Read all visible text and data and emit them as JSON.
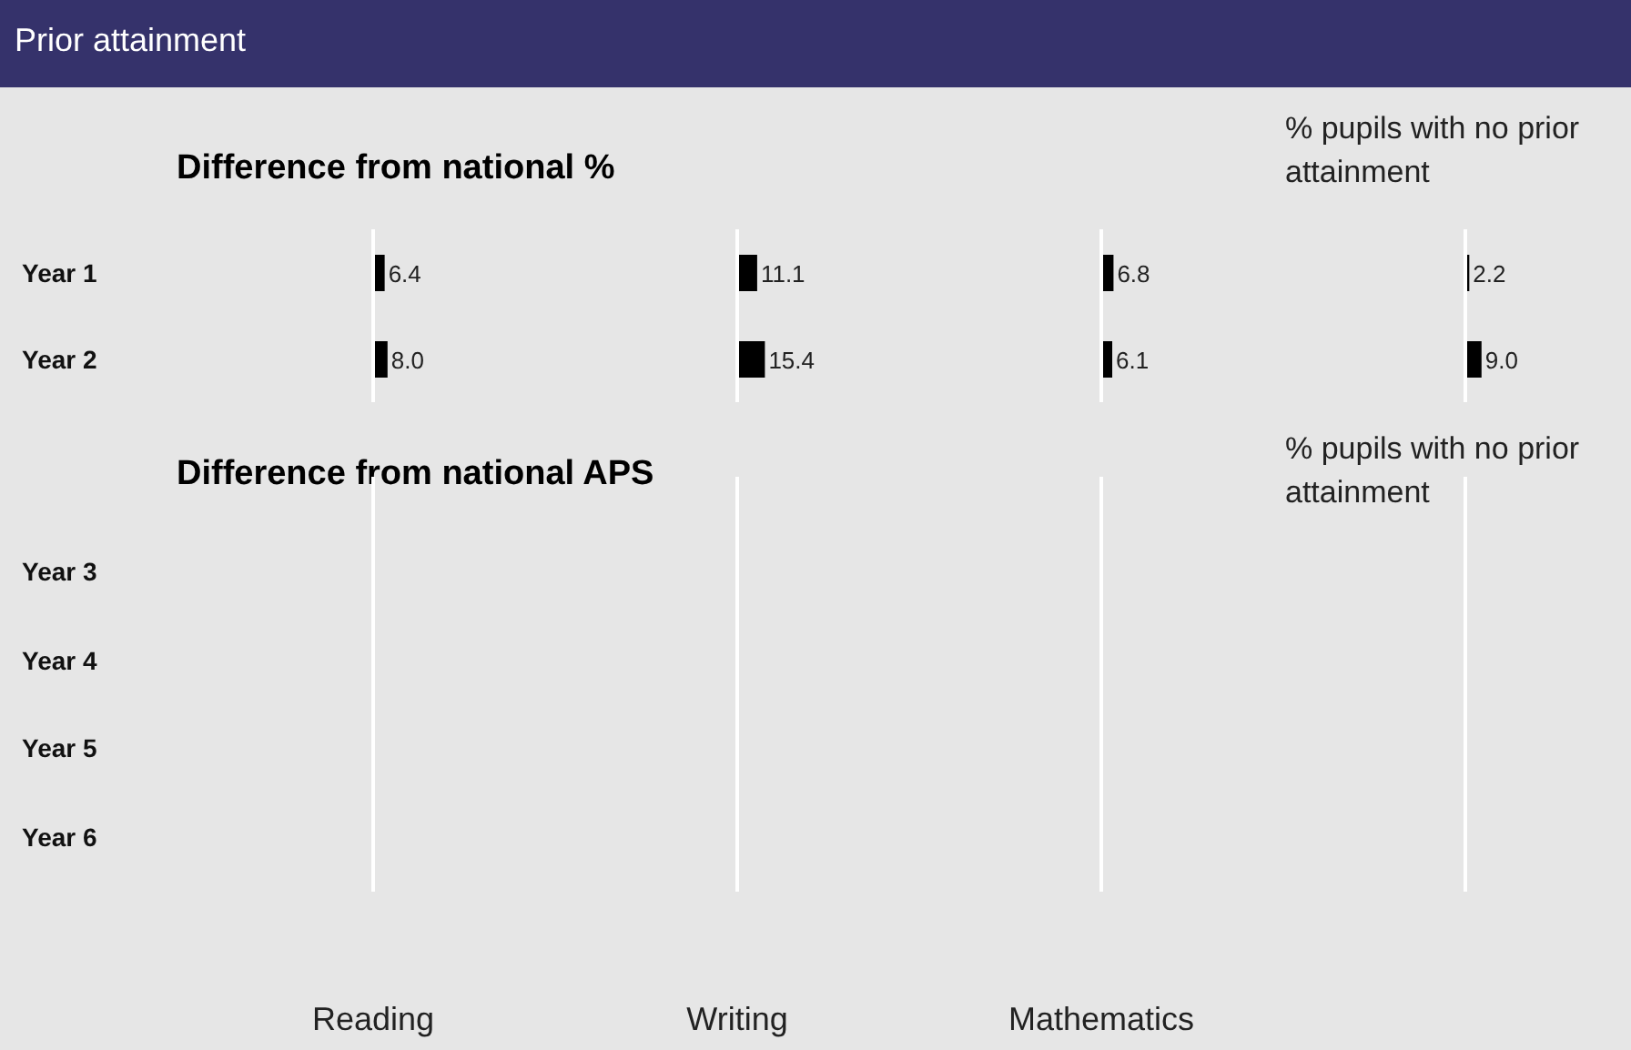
{
  "chart_data": [
    {
      "type": "bar",
      "orientation": "horizontal",
      "title": "Prior attainment",
      "subtitle": "Difference from national %",
      "xlabel": "Reading",
      "categories": [
        "Year 1",
        "Year 2"
      ],
      "values": [
        6.4,
        8.0
      ],
      "value_labels": [
        "6.4",
        "8.0"
      ],
      "color": "#000000",
      "tick_labels": "y"
    },
    {
      "type": "bar",
      "orientation": "horizontal",
      "xlabel": "Writing",
      "categories": [
        null,
        null
      ],
      "values": [
        11.1,
        15.4
      ],
      "value_labels": [
        "11.1",
        "15.4"
      ],
      "color": "#000000",
      "tick_labels": false
    },
    {
      "type": "bar",
      "orientation": "horizontal",
      "xlabel": "Mathematics",
      "categories": [
        null,
        null
      ],
      "values": [
        6.8,
        6.1
      ],
      "value_labels": [
        "6.8",
        "6.1"
      ],
      "color": "#000000",
      "tick_labels": false
    },
    {
      "type": "bar",
      "orientation": "horizontal",
      "xlabel": "% pupils with no prior attainment",
      "categories": [
        null,
        null
      ],
      "values": [
        2.2,
        9.0
      ],
      "value_labels": [
        "2.2",
        "9.0"
      ],
      "color": "#000000",
      "tick_labels": false
    },
    {
      "type": "other",
      "title": "Difference from national APS",
      "annotations": [
        "Year 3",
        "Year 4",
        "Year 5",
        "Year 6",
        "% pupils with no prior attainment"
      ]
    }
  ]
}
